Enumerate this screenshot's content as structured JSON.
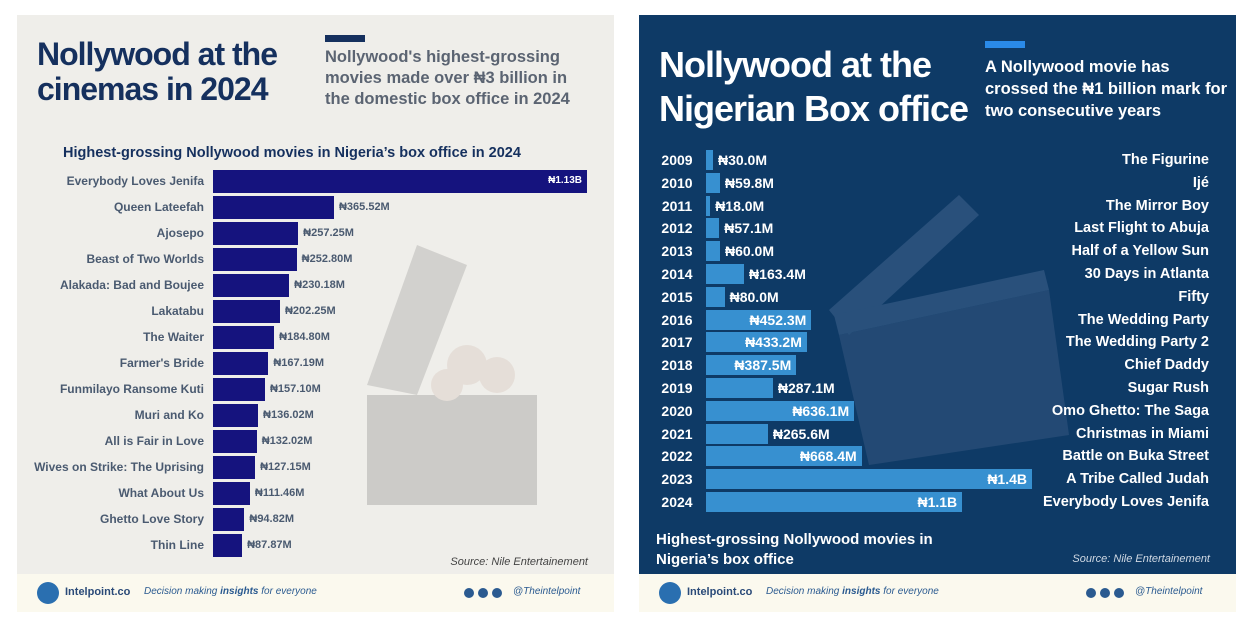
{
  "chart_data": [
    {
      "type": "bar",
      "title": "Nollywood at the cinemas in 2024",
      "subtitle": "Nollywood's highest-grossing movies made over ₦3 billion in the domestic box office in 2024",
      "chart_title": "Highest-grossing Nollywood movies in Nigeria’s box office in 2024",
      "categories": [
        "Everybody Loves Jenifa",
        "Queen Lateefah",
        "Ajosepo",
        "Beast of Two Worlds",
        "Alakada: Bad and Boujee",
        "Lakatabu",
        "The Waiter",
        "Farmer's Bride",
        "Funmilayo Ransome Kuti",
        "Muri and Ko",
        "All is Fair in Love",
        "Wives on Strike: The Uprising",
        "What About Us",
        "Ghetto Love Story",
        "Thin Line"
      ],
      "values": [
        1130,
        365.52,
        257.25,
        252.8,
        230.18,
        202.25,
        184.8,
        167.19,
        157.1,
        136.02,
        132.02,
        127.15,
        111.46,
        94.82,
        87.87
      ],
      "value_labels": [
        "₦1.13B",
        "₦365.52M",
        "₦257.25M",
        "₦252.80M",
        "₦230.18M",
        "₦202.25M",
        "₦184.80M",
        "₦167.19M",
        "₦157.10M",
        "₦136.02M",
        "₦132.02M",
        "₦127.15M",
        "₦111.46M",
        "₦94.82M",
        "₦87.87M"
      ],
      "color": "#15137e",
      "source": "Source: Nile Entertainement",
      "footer": {
        "brand": "Intelpoint.co",
        "tagline_start": "Decision making ",
        "tagline_bold": "insights",
        "tagline_end": " for everyone",
        "handle": "@Theintelpoint"
      }
    },
    {
      "type": "bar",
      "title": "Nollywood at the Nigerian Box office",
      "subtitle": "A Nollywood movie has crossed the ₦1 billion mark for two consecutive years",
      "chart_title": "Highest-grossing Nollywood movies in Nigeria’s box office",
      "categories": [
        "2009",
        "2010",
        "2011",
        "2012",
        "2013",
        "2014",
        "2015",
        "2016",
        "2017",
        "2018",
        "2019",
        "2020",
        "2021",
        "2022",
        "2023",
        "2024"
      ],
      "movies": [
        "The Figurine",
        "Ijé",
        "The Mirror Boy",
        "Last Flight to Abuja",
        "Half of a Yellow Sun",
        "30 Days in Atlanta",
        "Fifty",
        "The Wedding Party",
        "The Wedding Party 2",
        "Chief Daddy",
        "Sugar Rush",
        "Omo Ghetto: The Saga",
        "Christmas in Miami",
        "Battle on Buka Street",
        "A Tribe Called Judah",
        "Everybody Loves Jenifa"
      ],
      "values": [
        30.0,
        59.8,
        18.0,
        57.1,
        60.0,
        163.4,
        80.0,
        452.3,
        433.2,
        387.5,
        287.1,
        636.1,
        265.6,
        668.4,
        1400,
        1100
      ],
      "value_labels": [
        "₦30.0M",
        "₦59.8M",
        "₦18.0M",
        "₦57.1M",
        "₦60.0M",
        "₦163.4M",
        "₦80.0M",
        "₦452.3M",
        "₦433.2M",
        "₦387.5M",
        "₦287.1M",
        "₦636.1M",
        "₦265.6M",
        "₦668.4M",
        "₦1.4B",
        "₦1.1B"
      ],
      "color": "#3790d0",
      "source": "Source: Nile Entertainement",
      "footer": {
        "brand": "Intelpoint.co",
        "tagline_start": "Decision making ",
        "tagline_bold": "insights",
        "tagline_end": " for everyone",
        "handle": "@Theintelpoint"
      }
    }
  ]
}
